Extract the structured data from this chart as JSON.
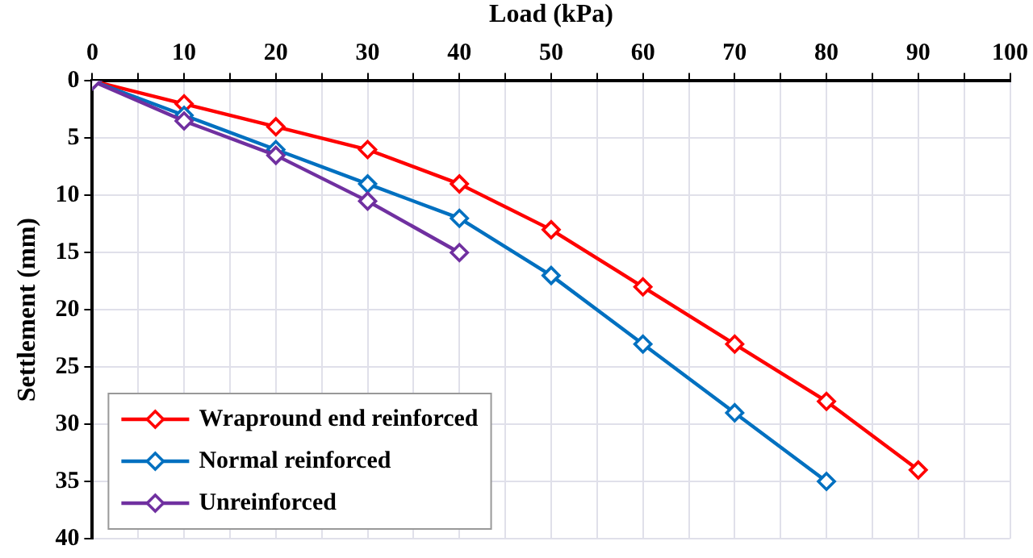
{
  "chart_data": {
    "type": "line",
    "xlabel": "Load (kPa)",
    "ylabel": "Settlement (mm)",
    "xlim": [
      0,
      100
    ],
    "xticks": [
      0,
      {
        "value": 5,
        "label": null
      },
      10,
      {
        "value": 15,
        "label": null
      },
      20,
      {
        "value": 25,
        "label": null
      },
      30,
      {
        "value": 35,
        "label": null
      },
      40,
      {
        "value": 45,
        "label": null
      },
      50,
      {
        "value": 55,
        "label": null
      },
      60,
      {
        "value": 65,
        "label": null
      },
      70,
      {
        "value": 75,
        "label": null
      },
      80,
      {
        "value": 85,
        "label": null
      },
      90,
      {
        "value": 95,
        "label": null
      },
      100
    ],
    "ylim": [
      40,
      0
    ],
    "yticks": [
      0,
      5,
      10,
      15,
      20,
      25,
      30,
      35,
      40
    ],
    "grid": true,
    "legend": "bottom left",
    "marker": "diamond",
    "line_style": "solid",
    "series": [
      {
        "name": "Wrapround end reinforced",
        "color": "#ff0000",
        "x": [
          0,
          10,
          20,
          30,
          40,
          50,
          60,
          70,
          80,
          90
        ],
        "values": [
          0,
          2,
          4,
          6,
          9,
          13,
          18,
          23,
          28,
          34
        ]
      },
      {
        "name": "Normal reinforced",
        "color": "#0070c0",
        "x": [
          0,
          10,
          20,
          30,
          40,
          50,
          60,
          70,
          80
        ],
        "values": [
          0,
          3,
          6,
          9,
          12,
          17,
          23,
          29,
          35
        ]
      },
      {
        "name": "Unreinforced",
        "color": "#7030a0",
        "x": [
          0,
          10,
          20,
          30,
          40
        ],
        "values": [
          0,
          3.5,
          6.5,
          10.5,
          15
        ]
      }
    ]
  }
}
